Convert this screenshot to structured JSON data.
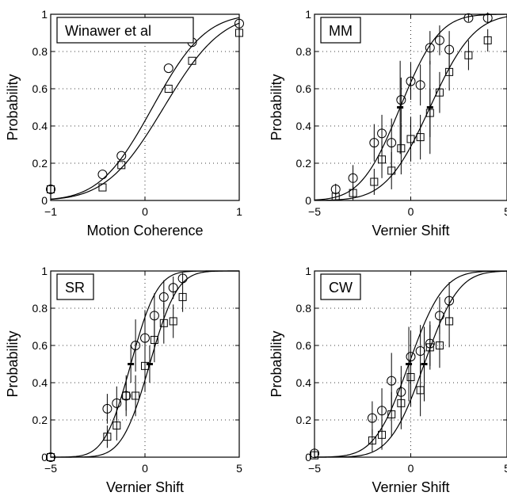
{
  "chart_data": [
    {
      "type": "scatter",
      "panel_label": "Winawer et al",
      "xlabel": "Motion Coherence",
      "ylabel": "Probability",
      "xlim": [
        -1,
        1
      ],
      "ylim": [
        0,
        1
      ],
      "xticks": [
        "−1",
        "0",
        "1"
      ],
      "yticks": [
        "0",
        "0.2",
        "0.4",
        "0.6",
        "0.8",
        "1"
      ],
      "grid": "dotted",
      "vline_x": 0,
      "series": [
        {
          "marker": "circle",
          "x": [
            -1.0,
            -0.45,
            -0.25,
            0.25,
            0.5,
            1.0
          ],
          "y": [
            0.06,
            0.14,
            0.24,
            0.71,
            0.85,
            0.95
          ]
        },
        {
          "marker": "square",
          "x": [
            -1.0,
            -0.45,
            -0.25,
            0.25,
            0.5,
            1.0
          ],
          "y": [
            0.06,
            0.07,
            0.19,
            0.6,
            0.75,
            0.9
          ]
        }
      ],
      "curves": [
        {
          "mu": 0.08,
          "sigma": 0.44
        },
        {
          "mu": 0.2,
          "sigma": 0.48
        }
      ],
      "pse_marks": []
    },
    {
      "type": "scatter",
      "panel_label": "MM",
      "xlabel": "Vernier Shift",
      "ylabel": "Probability",
      "xlim": [
        -5,
        5
      ],
      "ylim": [
        0,
        1
      ],
      "xticks": [
        "−5",
        "0",
        "5"
      ],
      "yticks": [
        "0",
        "0.2",
        "0.4",
        "0.6",
        "0.8",
        "1"
      ],
      "grid": "dotted",
      "vline_x": 0,
      "series": [
        {
          "marker": "circle",
          "x": [
            -3.9,
            -3.0,
            -1.9,
            -1.5,
            -1.0,
            -0.5,
            0.0,
            0.5,
            1.0,
            1.5,
            2.0,
            3.0,
            4.0
          ],
          "y": [
            0.06,
            0.12,
            0.31,
            0.36,
            0.31,
            0.54,
            0.64,
            0.62,
            0.82,
            0.86,
            0.81,
            0.98,
            0.98
          ],
          "err": [
            0.03,
            0.07,
            0.1,
            0.1,
            0.13,
            0.12,
            0.1,
            0.11,
            0.09,
            0.08,
            0.1,
            0.02,
            0.03
          ]
        },
        {
          "marker": "square",
          "x": [
            -3.9,
            -3.0,
            -1.9,
            -1.5,
            -1.0,
            -0.5,
            0.0,
            0.5,
            1.0,
            1.5,
            2.0,
            3.0,
            4.0
          ],
          "y": [
            0.02,
            0.04,
            0.1,
            0.22,
            0.16,
            0.28,
            0.33,
            0.34,
            0.47,
            0.58,
            0.69,
            0.78,
            0.86
          ],
          "err": [
            0.02,
            0.04,
            0.07,
            0.1,
            0.1,
            0.14,
            0.12,
            0.12,
            0.13,
            0.11,
            0.1,
            0.08,
            0.06
          ]
        }
      ],
      "curves": [
        {
          "mu": -0.55,
          "sigma": 1.6
        },
        {
          "mu": 1.0,
          "sigma": 1.8
        }
      ],
      "pse_marks": [
        {
          "x": -0.55,
          "y": 0.5,
          "err": 0.25
        },
        {
          "x": 1.0,
          "y": 0.5,
          "err": 0.25
        }
      ]
    },
    {
      "type": "scatter",
      "panel_label": "SR",
      "xlabel": "Vernier Shift",
      "ylabel": "Probability",
      "xlim": [
        -5,
        5
      ],
      "ylim": [
        0,
        1
      ],
      "xticks": [
        "−5",
        "0",
        "5"
      ],
      "yticks": [
        "0",
        "0.2",
        "0.4",
        "0.6",
        "0.8",
        "1"
      ],
      "grid": "dotted",
      "vline_x": 0,
      "series": [
        {
          "marker": "circle",
          "x": [
            -5.0,
            -2.0,
            -1.5,
            -1.0,
            -0.5,
            0.0,
            0.5,
            1.0,
            1.5,
            2.0
          ],
          "y": [
            0.0,
            0.26,
            0.29,
            0.33,
            0.6,
            0.64,
            0.76,
            0.86,
            0.91,
            0.96
          ],
          "err": [
            0.0,
            0.08,
            0.09,
            0.08,
            0.14,
            0.15,
            0.12,
            0.09,
            0.06,
            0.03
          ]
        },
        {
          "marker": "square",
          "x": [
            -5.0,
            -2.0,
            -1.5,
            -1.0,
            -0.5,
            0.0,
            0.5,
            1.0,
            1.5,
            2.0
          ],
          "y": [
            0.0,
            0.11,
            0.17,
            0.33,
            0.33,
            0.49,
            0.63,
            0.72,
            0.73,
            0.86
          ],
          "err": [
            0.0,
            0.06,
            0.08,
            0.11,
            0.11,
            0.14,
            0.12,
            0.11,
            0.09,
            0.08
          ]
        }
      ],
      "curves": [
        {
          "mu": -0.75,
          "sigma": 1.1
        },
        {
          "mu": 0.25,
          "sigma": 1.15
        }
      ],
      "pse_marks": [
        {
          "x": -0.75,
          "y": 0.5,
          "err": 0.1
        },
        {
          "x": 0.25,
          "y": 0.5,
          "err": 0.1
        }
      ]
    },
    {
      "type": "scatter",
      "panel_label": "CW",
      "xlabel": "Vernier Shift",
      "ylabel": "Probability",
      "xlim": [
        -5,
        5
      ],
      "ylim": [
        0,
        1
      ],
      "xticks": [
        "−5",
        "0",
        "5"
      ],
      "yticks": [
        "0",
        "0.2",
        "0.4",
        "0.6",
        "0.8",
        "1"
      ],
      "grid": "dotted",
      "vline_x": 0,
      "series": [
        {
          "marker": "circle",
          "x": [
            -5.0,
            -2.0,
            -1.5,
            -1.0,
            -0.5,
            0.0,
            0.5,
            1.0,
            1.5,
            2.0
          ],
          "y": [
            0.02,
            0.21,
            0.25,
            0.41,
            0.35,
            0.54,
            0.57,
            0.61,
            0.76,
            0.84
          ],
          "err": [
            0.01,
            0.09,
            0.12,
            0.15,
            0.14,
            0.14,
            0.14,
            0.12,
            0.1,
            0.1
          ]
        },
        {
          "marker": "square",
          "x": [
            -5.0,
            -2.0,
            -1.5,
            -1.0,
            -0.5,
            0.0,
            0.5,
            1.0,
            1.5,
            2.0
          ],
          "y": [
            0.01,
            0.09,
            0.12,
            0.23,
            0.29,
            0.43,
            0.36,
            0.59,
            0.6,
            0.73
          ],
          "err": [
            0.01,
            0.06,
            0.08,
            0.12,
            0.14,
            0.16,
            0.14,
            0.12,
            0.12,
            0.14
          ]
        }
      ],
      "curves": [
        {
          "mu": -0.1,
          "sigma": 1.4
        },
        {
          "mu": 0.7,
          "sigma": 1.4
        }
      ],
      "pse_marks": [
        {
          "x": -0.1,
          "y": 0.5,
          "err": 0.2
        },
        {
          "x": 0.7,
          "y": 0.5,
          "err": 0.2
        }
      ]
    }
  ]
}
